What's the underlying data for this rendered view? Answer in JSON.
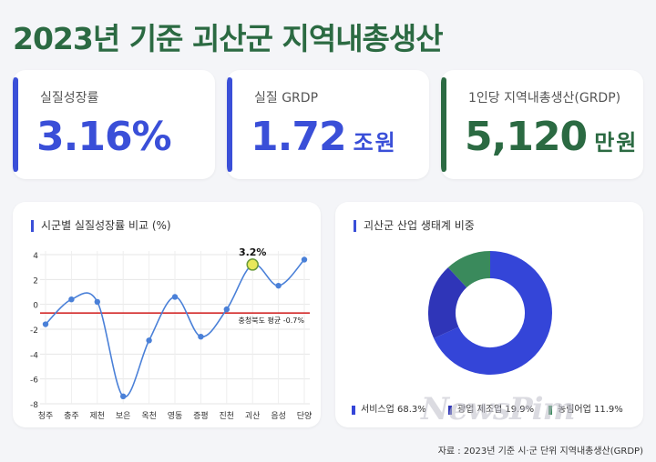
{
  "title": "2023년 기준 괴산군 지역내총생산",
  "cards": [
    {
      "label": "실질성장률",
      "value": "3.16%",
      "unit": "",
      "color": "#3a4fd8"
    },
    {
      "label": "실질 GRDP",
      "value": "1.72",
      "unit": "조원",
      "color": "#3a4fd8"
    },
    {
      "label": "1인당 지역내총생산(GRDP)",
      "value": "5,120",
      "unit": "만원",
      "color": "#2b6a42"
    }
  ],
  "line_panel_title": "시군별 실질성장률 비교 (%)",
  "donut_panel_title": "괴산군 산업 생태계 비중",
  "watermark": "NewsPim",
  "source": "자료 : 2023년 기준 시·군 단위 지역내총생산(GRDP)",
  "chart_data": [
    {
      "type": "line",
      "categories": [
        "청주",
        "충주",
        "제천",
        "보은",
        "옥천",
        "영동",
        "증평",
        "진천",
        "괴산",
        "음성",
        "단양"
      ],
      "values": [
        -1.6,
        0.4,
        0.2,
        -7.4,
        -2.9,
        0.6,
        -2.6,
        -0.4,
        3.2,
        1.5,
        3.6
      ],
      "ylim": [
        -8,
        4
      ],
      "yticks": [
        4,
        2,
        0,
        -2,
        -4,
        -6,
        -8
      ],
      "line_color": "#4a80d8",
      "reference_line": {
        "value": -0.7,
        "label": "충청북도 평균 -0.7%",
        "color": "#d32a2a"
      },
      "highlight": {
        "category": "괴산",
        "label": "3.2%",
        "color": "#e8e85a"
      },
      "grid": true
    },
    {
      "type": "pie",
      "donut": true,
      "series": [
        {
          "name": "서비스업",
          "value": 68.3,
          "label": "서비스업 68.3%",
          "color": "#3445d8"
        },
        {
          "name": "광업 제조업",
          "value": 19.9,
          "label": "광업 제조업 19.9%",
          "color": "#2f35b8"
        },
        {
          "name": "농림어업",
          "value": 11.9,
          "label": "농림어업 11.9%",
          "color": "#3a8a5c"
        }
      ]
    }
  ]
}
